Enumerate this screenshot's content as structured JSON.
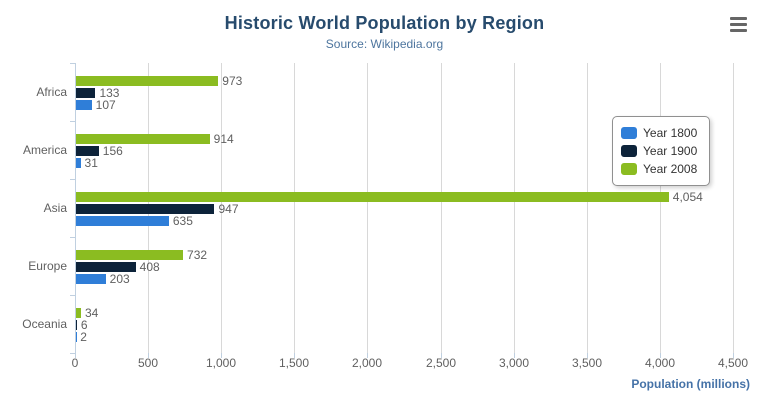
{
  "chart_data": {
    "type": "bar",
    "title": "Historic World Population by Region",
    "subtitle": "Source: Wikipedia.org",
    "categories": [
      "Africa",
      "America",
      "Asia",
      "Europe",
      "Oceania"
    ],
    "series": [
      {
        "name": "Year 1800",
        "color": "#2f7ed8",
        "values": [
          107,
          31,
          635,
          203,
          2
        ]
      },
      {
        "name": "Year 1900",
        "color": "#0d233a",
        "values": [
          133,
          156,
          947,
          408,
          6
        ]
      },
      {
        "name": "Year 2008",
        "color": "#8bbc21",
        "values": [
          973,
          914,
          4054,
          732,
          34
        ]
      }
    ],
    "bar_order_top_to_bottom": [
      "Year 2008",
      "Year 1900",
      "Year 1800"
    ],
    "xlabel": "Population (millions)",
    "ylabel": "",
    "xlim": [
      0,
      4500
    ],
    "x_ticks": [
      0,
      500,
      1000,
      1500,
      2000,
      2500,
      3000,
      3500,
      4000,
      4500
    ],
    "x_tick_labels": [
      "0",
      "500",
      "1,000",
      "1,500",
      "2,000",
      "2,500",
      "3,000",
      "3,500",
      "4,000",
      "4,500"
    ],
    "data_labels_shown": true,
    "grid": true,
    "legend_position": "right-middle",
    "colors": {
      "title": "#274b6d",
      "subtitle": "#4d759e",
      "axis_title": "#4572a7",
      "labels": "#606060",
      "gridline": "#d8d8d8",
      "axis_line": "#c0d0e0"
    }
  },
  "export_menu": {
    "icon": "hamburger-icon"
  }
}
